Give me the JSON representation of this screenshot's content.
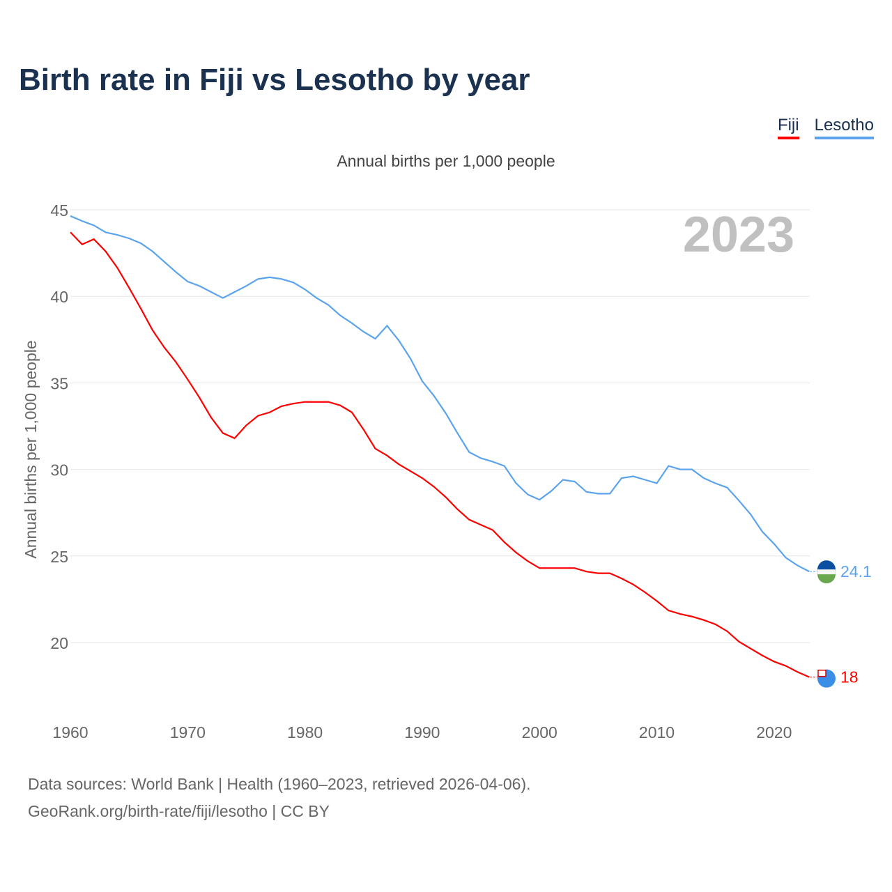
{
  "chart_data": {
    "type": "line",
    "title": "Birth rate in Fiji vs Lesotho by year",
    "subtitle": "Annual births per 1,000 people",
    "ylabel": "Annual births per 1,000 people",
    "xlabel": "",
    "year_label": "2023",
    "xlim": [
      1960,
      2023
    ],
    "ylim": [
      15.5,
      46
    ],
    "yticks": [
      20,
      25,
      30,
      35,
      40,
      45
    ],
    "xticks": [
      1960,
      1970,
      1980,
      1990,
      2000,
      2010,
      2020
    ],
    "grid": true,
    "legend_position": "top-right",
    "x_start": 1960,
    "series": [
      {
        "name": "Fiji",
        "color": "#ff0000",
        "end_label": "18",
        "values": [
          43.7,
          43.0,
          43.3,
          42.6,
          41.65,
          40.5,
          39.3,
          38.05,
          37.05,
          36.2,
          35.2,
          34.15,
          33.0,
          32.1,
          31.8,
          32.55,
          33.1,
          33.3,
          33.65,
          33.8,
          33.9,
          33.9,
          33.9,
          33.7,
          33.3,
          32.3,
          31.2,
          30.8,
          30.3,
          29.9,
          29.5,
          29.0,
          28.4,
          27.7,
          27.1,
          26.8,
          26.5,
          25.8,
          25.2,
          24.7,
          24.3,
          24.3,
          24.3,
          24.3,
          24.1,
          24.0,
          24.0,
          23.7,
          23.35,
          22.9,
          22.4,
          21.85,
          21.65,
          21.5,
          21.3,
          21.05,
          20.65,
          20.05,
          19.65,
          19.25,
          18.9,
          18.65,
          18.3,
          18.0
        ]
      },
      {
        "name": "Lesotho",
        "color": "#5ba3ec",
        "end_label": "24.1",
        "values": [
          44.64,
          44.35,
          44.1,
          43.7,
          43.55,
          43.35,
          43.07,
          42.6,
          42.0,
          41.4,
          40.85,
          40.6,
          40.25,
          39.9,
          40.25,
          40.6,
          41.0,
          41.1,
          41.0,
          40.8,
          40.4,
          39.9,
          39.5,
          38.9,
          38.45,
          37.95,
          37.55,
          38.3,
          37.45,
          36.4,
          35.1,
          34.25,
          33.25,
          32.1,
          31.0,
          30.65,
          30.45,
          30.2,
          29.2,
          28.55,
          28.25,
          28.75,
          29.4,
          29.3,
          28.7,
          28.6,
          28.6,
          29.5,
          29.6,
          29.4,
          29.2,
          30.2,
          30.0,
          30.0,
          29.5,
          29.2,
          28.95,
          28.2,
          27.4,
          26.4,
          25.7,
          24.9,
          24.45,
          24.1
        ]
      }
    ]
  },
  "footer": {
    "line1": "Data sources: World Bank | Health (1960–2023, retrieved 2026-04-06).",
    "line2": "GeoRank.org/birth-rate/fiji/lesotho | CC BY"
  }
}
